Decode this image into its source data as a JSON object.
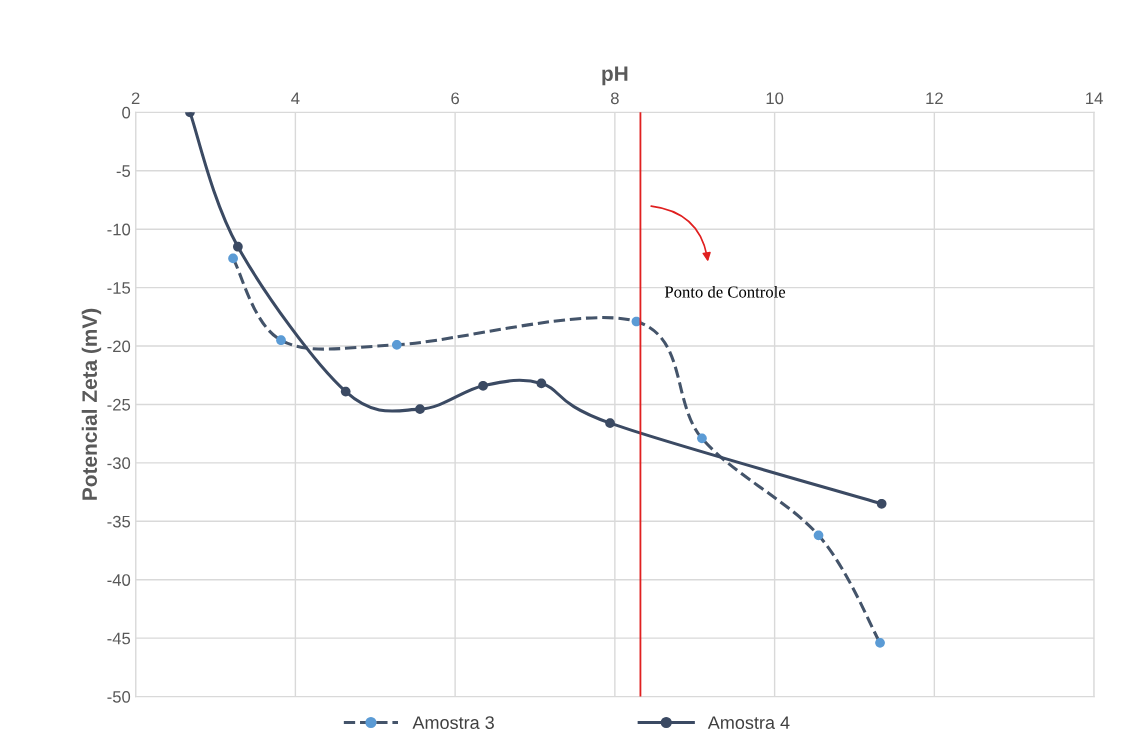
{
  "chart_data": {
    "type": "line",
    "xlabel": "pH",
    "ylabel": "Potencial Zeta (mV)",
    "xlim": [
      2,
      14
    ],
    "xticks": [
      2,
      4,
      6,
      8,
      10,
      12,
      14
    ],
    "ylim": [
      -50,
      0
    ],
    "yticks": [
      -50,
      -45,
      -40,
      -35,
      -30,
      -25,
      -20,
      -15,
      -10,
      -5,
      0
    ],
    "grid": true,
    "legend": "bottom",
    "marker": "circle",
    "series": [
      {
        "name": "Amostra 3",
        "color": "#44546a",
        "colors": [
          "#5b9bd5",
          "#5b9bd5",
          "#5b9bd5",
          "#5b9bd5",
          "#5b9bd5",
          "#5b9bd5",
          "#5b9bd5"
        ],
        "line_style": "dashed",
        "x": [
          3.22,
          3.82,
          5.27,
          8.27,
          9.09,
          10.55,
          11.32
        ],
        "values": [
          -12.5,
          -19.5,
          -19.9,
          -17.9,
          -27.9,
          -36.2,
          -45.4
        ]
      },
      {
        "name": "Amostra 4",
        "color": "#3b4a63",
        "line_style": "solid",
        "x": [
          2.68,
          3.28,
          4.63,
          5.56,
          6.35,
          7.08,
          7.94,
          11.34
        ],
        "values": [
          0,
          -11.5,
          -23.9,
          -25.4,
          -23.4,
          -23.2,
          -26.6,
          -33.5
        ]
      }
    ],
    "ref_lines": [
      {
        "axis": "x",
        "value": 8.32,
        "color": "#e02020",
        "label": "Ponto de Controle"
      }
    ]
  }
}
